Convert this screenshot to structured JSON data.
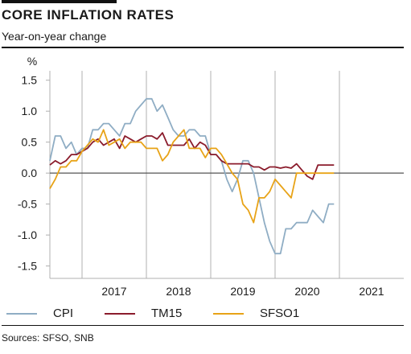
{
  "header": {
    "title": "CORE INFLATION RATES",
    "subtitle": "Year-on-year change"
  },
  "footer": {
    "source": "Sources: SFSO, SNB"
  },
  "colors": {
    "CPI": "#8fadc4",
    "TM15": "#8b1c2c",
    "SFSO1": "#e8a317",
    "grid": "#b0b0b0",
    "zero": "#555555"
  },
  "chart_data": {
    "type": "line",
    "ylabel": "%",
    "ylim": [
      -1.7,
      1.6
    ],
    "yticks": [
      1.5,
      1.0,
      0.5,
      0.0,
      -0.5,
      -1.0,
      -1.5
    ],
    "ytick_labels": [
      "1.5",
      "1.0",
      "0.5",
      "0.0",
      "-0.5",
      "-1.0",
      "-1.5"
    ],
    "xlim": [
      "2016-07",
      "2021-12"
    ],
    "year_labels": [
      "2017",
      "2018",
      "2019",
      "2020",
      "2021"
    ],
    "grid": "vertical lines at year boundaries",
    "legend_position": "bottom",
    "x": [
      "2016-07",
      "2016-08",
      "2016-09",
      "2016-10",
      "2016-11",
      "2016-12",
      "2017-01",
      "2017-02",
      "2017-03",
      "2017-04",
      "2017-05",
      "2017-06",
      "2017-07",
      "2017-08",
      "2017-09",
      "2017-10",
      "2017-11",
      "2017-12",
      "2018-01",
      "2018-02",
      "2018-03",
      "2018-04",
      "2018-05",
      "2018-06",
      "2018-07",
      "2018-08",
      "2018-09",
      "2018-10",
      "2018-11",
      "2018-12",
      "2019-01",
      "2019-02",
      "2019-03",
      "2019-04",
      "2019-05",
      "2019-06",
      "2019-07",
      "2019-08",
      "2019-09",
      "2019-10",
      "2019-11",
      "2019-12",
      "2020-01",
      "2020-02",
      "2020-03",
      "2020-04",
      "2020-05",
      "2020-06",
      "2020-07",
      "2020-08",
      "2020-09",
      "2020-10",
      "2020-11",
      "2020-12"
    ],
    "series": [
      {
        "name": "CPI",
        "values": [
          0.2,
          0.6,
          0.6,
          0.4,
          0.5,
          0.3,
          0.4,
          0.4,
          0.7,
          0.7,
          0.8,
          0.8,
          0.7,
          0.6,
          0.8,
          0.8,
          1.0,
          1.1,
          1.2,
          1.2,
          1.0,
          1.1,
          0.9,
          0.7,
          0.6,
          0.6,
          0.7,
          0.7,
          0.6,
          0.6,
          0.3,
          0.3,
          0.2,
          -0.1,
          -0.3,
          -0.1,
          0.2,
          0.2,
          0.0,
          -0.4,
          -0.8,
          -1.1,
          -1.3,
          -1.3,
          -0.9,
          -0.9,
          -0.8,
          -0.8,
          -0.8,
          -0.6,
          -0.7,
          -0.8,
          -0.5,
          -0.5
        ]
      },
      {
        "name": "TM15",
        "values": [
          0.13,
          0.2,
          0.15,
          0.2,
          0.3,
          0.3,
          0.35,
          0.4,
          0.5,
          0.55,
          0.45,
          0.5,
          0.55,
          0.4,
          0.6,
          0.55,
          0.5,
          0.55,
          0.6,
          0.6,
          0.55,
          0.65,
          0.45,
          0.45,
          0.45,
          0.45,
          0.55,
          0.4,
          0.5,
          0.45,
          0.3,
          0.3,
          0.2,
          0.15,
          0.15,
          0.15,
          0.15,
          0.15,
          0.1,
          0.1,
          0.05,
          0.1,
          0.1,
          0.08,
          0.1,
          0.08,
          0.15,
          0.05,
          -0.05,
          -0.1,
          0.13,
          0.13,
          0.13,
          0.13
        ]
      },
      {
        "name": "SFSO1",
        "values": [
          -0.25,
          -0.1,
          0.1,
          0.1,
          0.2,
          0.2,
          0.35,
          0.45,
          0.55,
          0.5,
          0.7,
          0.45,
          0.5,
          0.55,
          0.4,
          0.5,
          0.5,
          0.5,
          0.4,
          0.4,
          0.4,
          0.2,
          0.3,
          0.5,
          0.6,
          0.7,
          0.4,
          0.4,
          0.4,
          0.25,
          0.4,
          0.4,
          0.3,
          0.15,
          0.0,
          -0.1,
          -0.5,
          -0.6,
          -0.8,
          -0.4,
          -0.4,
          -0.3,
          -0.1,
          -0.2,
          -0.3,
          -0.4,
          0.0,
          0.0,
          0.0,
          0.0,
          0.0,
          0.0,
          0.0,
          0.0
        ]
      }
    ]
  }
}
